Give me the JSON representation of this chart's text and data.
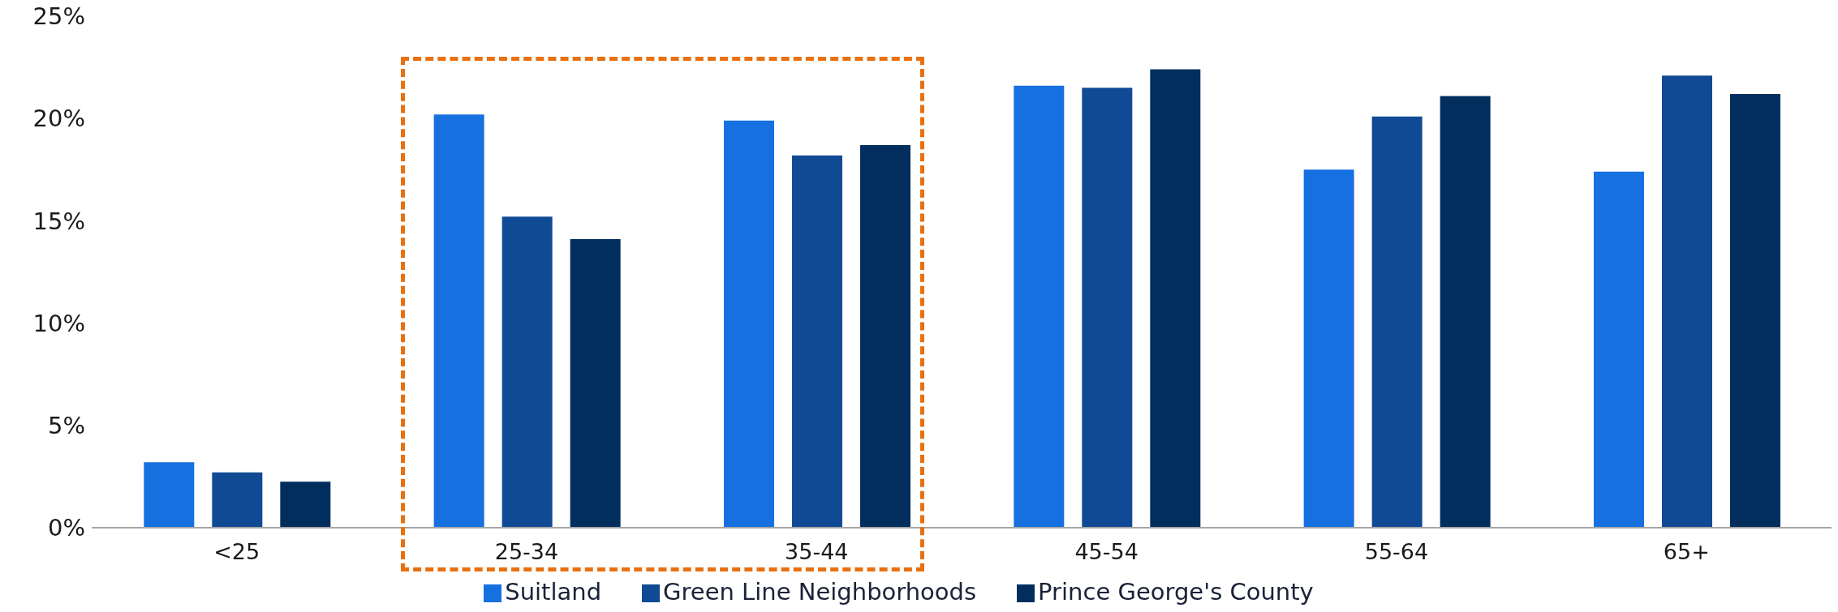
{
  "chart_data": {
    "type": "bar",
    "categories": [
      "<25",
      "25-34",
      "35-44",
      "45-54",
      "55-64",
      "65+"
    ],
    "series": [
      {
        "name": "Suitland",
        "color": "#1670e0",
        "values": [
          3.2,
          20.2,
          19.9,
          21.6,
          17.5,
          17.4
        ]
      },
      {
        "name": "Green Line Neighborhoods",
        "color": "#104a94",
        "values": [
          2.7,
          15.2,
          18.2,
          21.5,
          20.1,
          22.1
        ]
      },
      {
        "name": "Prince George's County",
        "color": "#022e5e",
        "values": [
          2.25,
          14.1,
          18.7,
          22.4,
          21.1,
          21.2
        ]
      }
    ],
    "ylim": [
      0,
      25
    ],
    "yticks": [
      {
        "value": 0,
        "label": "0%"
      },
      {
        "value": 5,
        "label": "5%"
      },
      {
        "value": 10,
        "label": "10%"
      },
      {
        "value": 15,
        "label": "15%"
      },
      {
        "value": 20,
        "label": "20%"
      },
      {
        "value": 25,
        "label": "25%"
      }
    ],
    "grid": false,
    "legend": "bottom"
  }
}
